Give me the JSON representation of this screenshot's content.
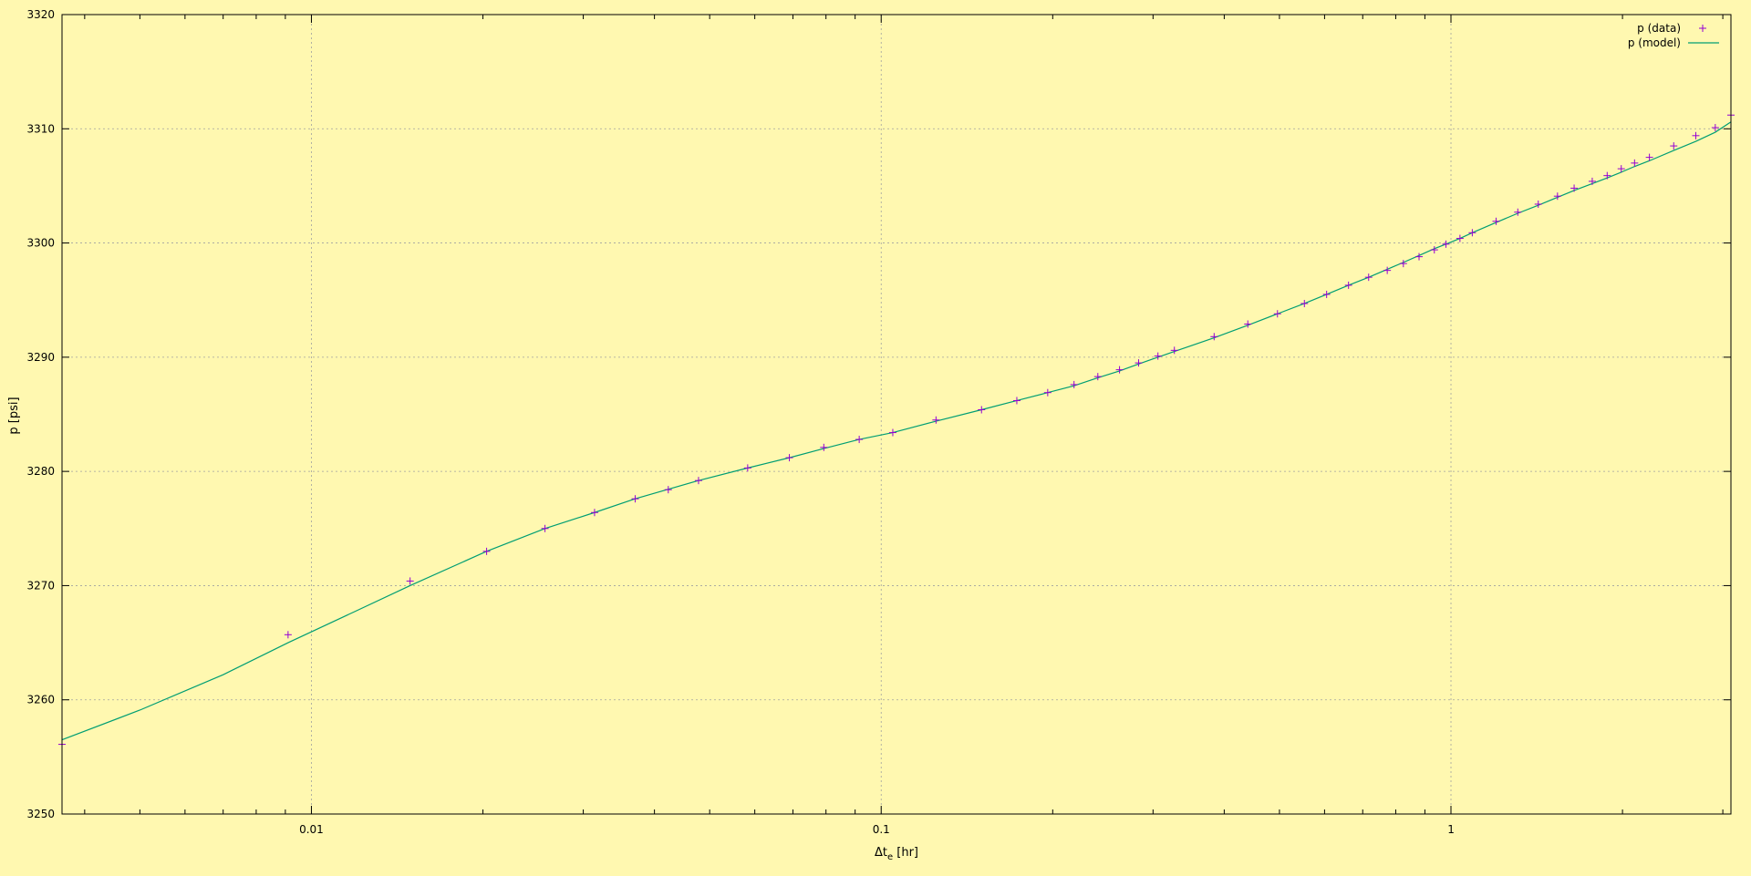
{
  "chart_data": {
    "type": "scatter",
    "xlabel_main": "Δt",
    "xlabel_sub": "e",
    "xlabel_unit": " [hr]",
    "ylabel": "p [psi]",
    "xscale": "log",
    "xlim": [
      0.00365,
      3.1
    ],
    "ylim": [
      3250,
      3320
    ],
    "x_ticks": [
      {
        "value": 0.01,
        "label": "0.01"
      },
      {
        "value": 0.1,
        "label": "0.1"
      },
      {
        "value": 1,
        "label": "1"
      }
    ],
    "y_ticks": [
      {
        "value": 3250,
        "label": "3250"
      },
      {
        "value": 3260,
        "label": "3260"
      },
      {
        "value": 3270,
        "label": "3270"
      },
      {
        "value": 3280,
        "label": "3280"
      },
      {
        "value": 3290,
        "label": "3290"
      },
      {
        "value": 3300,
        "label": "3300"
      },
      {
        "value": 3310,
        "label": "3310"
      },
      {
        "value": 3320,
        "label": "3320"
      }
    ],
    "grid": true,
    "legend_position": "top-right",
    "colors": {
      "background": "#fff8b0",
      "data": "#9400d3",
      "model": "#009e73",
      "grid": "#a0a0a0",
      "axis": "#000000"
    },
    "series": [
      {
        "name": "p (data)",
        "style": "points",
        "x": [
          0.00365,
          0.0091,
          0.0149,
          0.0203,
          0.0257,
          0.0314,
          0.037,
          0.0423,
          0.0478,
          0.0583,
          0.069,
          0.0793,
          0.0915,
          0.1048,
          0.1248,
          0.15,
          0.173,
          0.196,
          0.218,
          0.24,
          0.262,
          0.283,
          0.306,
          0.327,
          0.384,
          0.44,
          0.496,
          0.553,
          0.605,
          0.661,
          0.717,
          0.773,
          0.825,
          0.879,
          0.935,
          0.98,
          1.037,
          1.09,
          1.2,
          1.31,
          1.423,
          1.538,
          1.645,
          1.77,
          1.88,
          1.99,
          2.1,
          2.23,
          2.46,
          2.69,
          2.91,
          3.1
        ],
        "y": [
          3256.1,
          3265.7,
          3270.4,
          3273.0,
          3275.0,
          3276.4,
          3277.6,
          3278.4,
          3279.2,
          3280.3,
          3281.2,
          3282.1,
          3282.8,
          3283.4,
          3284.5,
          3285.4,
          3286.2,
          3286.9,
          3287.6,
          3288.3,
          3288.9,
          3289.5,
          3290.1,
          3290.6,
          3291.8,
          3292.9,
          3293.8,
          3294.7,
          3295.5,
          3296.3,
          3297.0,
          3297.6,
          3298.2,
          3298.8,
          3299.4,
          3299.9,
          3300.4,
          3300.9,
          3301.9,
          3302.7,
          3303.4,
          3304.1,
          3304.8,
          3305.4,
          3305.9,
          3306.5,
          3307.0,
          3307.5,
          3308.5,
          3309.4,
          3310.1,
          3311.2
        ]
      },
      {
        "name": "p (model)",
        "style": "line",
        "x": [
          0.00365,
          0.005,
          0.007,
          0.0091,
          0.012,
          0.0149,
          0.0203,
          0.0257,
          0.0314,
          0.037,
          0.0478,
          0.0583,
          0.069,
          0.0793,
          0.0915,
          0.1048,
          0.1248,
          0.15,
          0.173,
          0.196,
          0.218,
          0.24,
          0.262,
          0.283,
          0.306,
          0.327,
          0.384,
          0.44,
          0.496,
          0.553,
          0.605,
          0.661,
          0.717,
          0.773,
          0.825,
          0.879,
          0.935,
          0.98,
          1.037,
          1.09,
          1.2,
          1.31,
          1.423,
          1.538,
          1.645,
          1.77,
          1.88,
          1.99,
          2.1,
          2.23,
          2.46,
          2.69,
          2.91,
          3.1
        ],
        "y": [
          3256.5,
          3259.1,
          3262.2,
          3265.0,
          3267.8,
          3270.0,
          3273.0,
          3275.0,
          3276.4,
          3277.6,
          3279.2,
          3280.3,
          3281.2,
          3282.0,
          3282.8,
          3283.4,
          3284.4,
          3285.4,
          3286.2,
          3286.9,
          3287.5,
          3288.2,
          3288.8,
          3289.4,
          3290.0,
          3290.5,
          3291.7,
          3292.8,
          3293.8,
          3294.7,
          3295.5,
          3296.3,
          3297.0,
          3297.7,
          3298.3,
          3298.9,
          3299.5,
          3299.9,
          3300.4,
          3300.9,
          3301.8,
          3302.6,
          3303.3,
          3304.0,
          3304.6,
          3305.2,
          3305.7,
          3306.2,
          3306.7,
          3307.2,
          3308.1,
          3308.9,
          3309.7,
          3310.6
        ]
      }
    ]
  }
}
